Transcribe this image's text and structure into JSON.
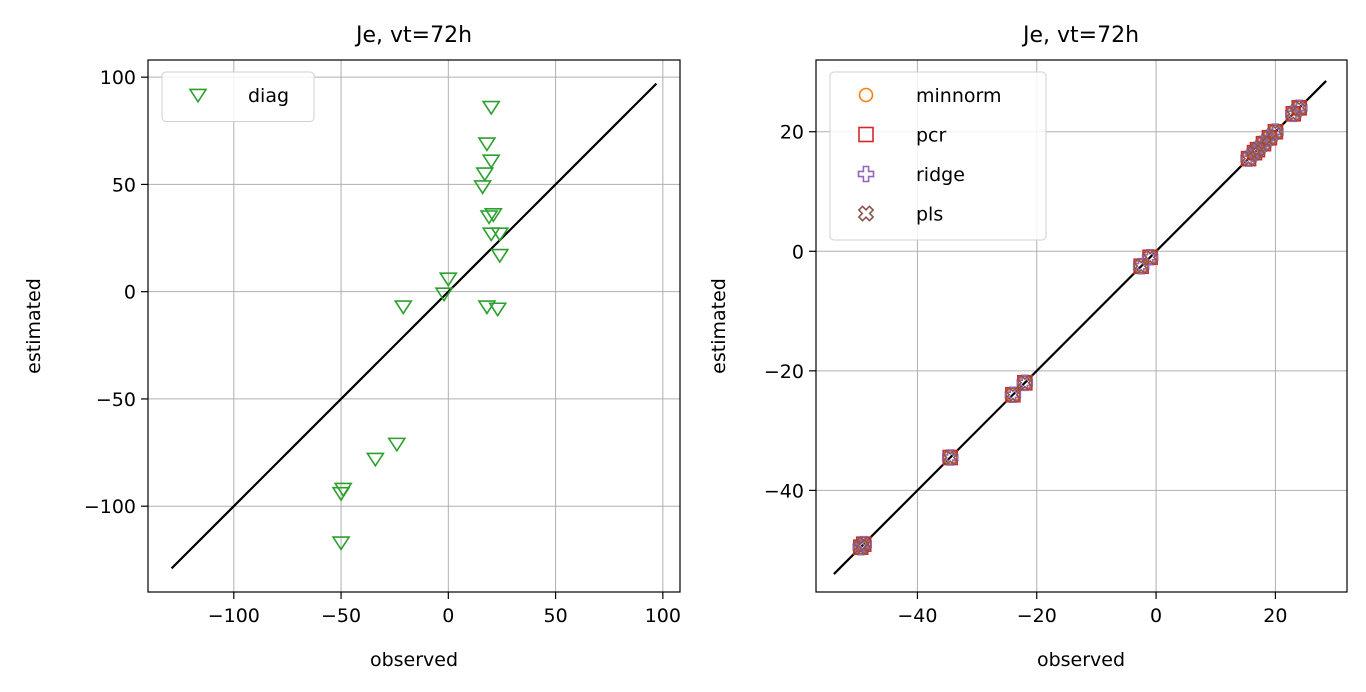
{
  "chart_data": [
    {
      "type": "scatter",
      "title": "Je, vt=72h",
      "xlabel": "observed",
      "ylabel": "estimated",
      "xlim": [
        -140,
        108
      ],
      "ylim": [
        -140,
        108
      ],
      "xticks": [
        -100,
        -50,
        0,
        50,
        100
      ],
      "yticks": [
        -100,
        -50,
        0,
        50,
        100
      ],
      "grid": true,
      "legend_position": "upper-left",
      "identity_line": {
        "from": -129,
        "to": 97,
        "color": "#000000"
      },
      "series": [
        {
          "name": "diag",
          "marker": "triangle-down",
          "color": "#2ca02c",
          "x": [
            20,
            18,
            20,
            17,
            16,
            21,
            19,
            24,
            20,
            24,
            0,
            -2,
            -21,
            18,
            23,
            -24,
            -34,
            -49,
            -50,
            -50
          ],
          "y": [
            86,
            69,
            61,
            55,
            49,
            36,
            35,
            27,
            27,
            17,
            6,
            -1,
            -7,
            -7,
            -8,
            -71,
            -78,
            -92,
            -94,
            -117
          ]
        }
      ]
    },
    {
      "type": "scatter",
      "title": "Je, vt=72h",
      "xlabel": "observed",
      "ylabel": "estimated",
      "xlim": [
        -57,
        32
      ],
      "ylim": [
        -57,
        32
      ],
      "xticks": [
        -40,
        -20,
        0,
        20
      ],
      "yticks": [
        -40,
        -20,
        0,
        20
      ],
      "grid": true,
      "legend_position": "upper-left",
      "identity_line": {
        "from": -54,
        "to": 28.5,
        "color": "#000000"
      },
      "x": [
        -49.5,
        -49,
        -34.5,
        -24,
        -22,
        -2.5,
        -1,
        15.5,
        16.5,
        17,
        18,
        19,
        20,
        23,
        24
      ],
      "series": [
        {
          "name": "minnorm",
          "marker": "circle",
          "color": "#ff7f0e",
          "y": [
            -49.5,
            -49,
            -34.5,
            -24,
            -22,
            -2.5,
            -1,
            15.5,
            16.5,
            17,
            18,
            19,
            20,
            23,
            24
          ]
        },
        {
          "name": "pcr",
          "marker": "square",
          "color": "#d62728",
          "y": [
            -49.5,
            -49,
            -34.5,
            -24,
            -22,
            -2.5,
            -1,
            15.5,
            16.5,
            17,
            18,
            19,
            20,
            23,
            24
          ]
        },
        {
          "name": "ridge",
          "marker": "plus",
          "color": "#9467bd",
          "y": [
            -49.5,
            -49,
            -34.5,
            -24,
            -22,
            -2.5,
            -1,
            15.5,
            16.5,
            17,
            18,
            19,
            20,
            23,
            24
          ]
        },
        {
          "name": "pls",
          "marker": "x",
          "color": "#8c564b",
          "y": [
            -49.5,
            -49,
            -34.5,
            -24,
            -22,
            -2.5,
            -1,
            15.5,
            16.5,
            17,
            18,
            19,
            20,
            23,
            24
          ]
        }
      ]
    }
  ]
}
